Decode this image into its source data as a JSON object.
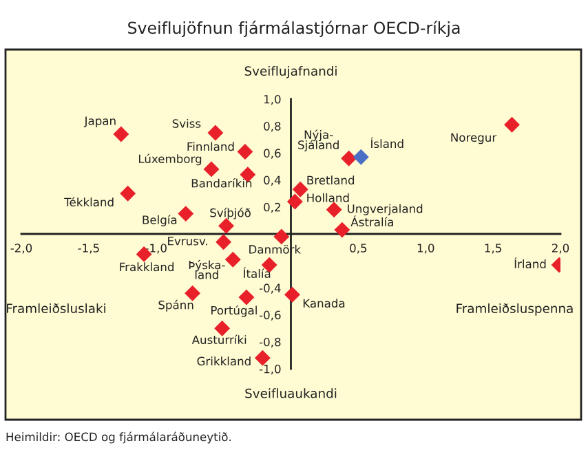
{
  "chart_data": {
    "type": "scatter",
    "title": "Sveiflujöfnun fjármálastjórnar OECD-ríkja",
    "series": [
      {
        "type": "scatter",
        "x": [
          -1.26,
          -0.56,
          -0.34,
          -0.59,
          -0.32,
          -1.21,
          -0.78,
          -0.48,
          -0.5,
          -0.07,
          -1.09,
          -0.43,
          -0.16,
          -0.73,
          -0.33,
          0.01,
          -0.51,
          -0.21,
          0.43,
          0.52,
          1.64,
          0.07,
          0.03,
          0.32,
          0.38,
          1.99
        ],
        "values": [
          0.74,
          0.75,
          0.61,
          0.48,
          0.44,
          0.3,
          0.15,
          0.06,
          -0.06,
          -0.02,
          -0.15,
          -0.19,
          -0.23,
          -0.44,
          -0.47,
          -0.45,
          -0.7,
          -0.92,
          0.56,
          0.57,
          0.81,
          0.33,
          0.24,
          0.18,
          0.03,
          -0.23
        ],
        "colors": [
          "#e8202a",
          "#e8202a",
          "#e8202a",
          "#e8202a",
          "#e8202a",
          "#e8202a",
          "#e8202a",
          "#e8202a",
          "#e8202a",
          "#e8202a",
          "#e8202a",
          "#e8202a",
          "#e8202a",
          "#e8202a",
          "#e8202a",
          "#e8202a",
          "#e8202a",
          "#e8202a",
          "#e8202a",
          "#4a6fc4",
          "#e8202a",
          "#e8202a",
          "#e8202a",
          "#e8202a",
          "#e8202a",
          "#e8202a"
        ],
        "value_labels": [
          "Japan",
          "Sviss",
          "Finnland",
          "Lúxemborg",
          "Bandaríkin",
          "Tékkland",
          "Belgía",
          "Svíþjóð",
          "Evrusv.",
          "Danmörk",
          "Frakkland",
          "Þýska-\nland",
          "Ítalía",
          "Spánn",
          "Portúgal",
          "Kanada",
          "Austurríki",
          "Grikkland",
          "Nýja-\nSjáland",
          "Ísland",
          "Noregur",
          "Bretland",
          "Holland",
          "Ungverjaland",
          "Ástralía",
          "Írland"
        ]
      }
    ],
    "xlim": [
      -2.0,
      2.0
    ],
    "xticks": [
      {
        "value": -2.0,
        "label": "-2,0"
      },
      {
        "value": -1.5,
        "label": "-1,5"
      },
      {
        "value": -1.0,
        "label": "-1,0"
      },
      {
        "value": 0,
        "label": null
      },
      {
        "value": 0.5,
        "label": "0,5"
      },
      {
        "value": 1.0,
        "label": "1,0"
      },
      {
        "value": 1.5,
        "label": "1,5"
      },
      {
        "value": 2.0,
        "label": "2,0"
      }
    ],
    "ylim": [
      -1.0,
      1.0
    ],
    "yticks": [
      {
        "value": -1.0,
        "label": "-1,0"
      },
      {
        "value": -0.8,
        "label": "-0,8"
      },
      {
        "value": -0.6,
        "label": "-0,6"
      },
      {
        "value": -0.4,
        "label": "-0,4"
      },
      {
        "value": 0,
        "label": null
      },
      {
        "value": 0.2,
        "label": "0,2"
      },
      {
        "value": 0.4,
        "label": "0,4"
      },
      {
        "value": 0.6,
        "label": "0,6"
      },
      {
        "value": 0.8,
        "label": "0,8"
      },
      {
        "value": 1.0,
        "label": "1,0"
      }
    ],
    "marker": "diamond",
    "grid": false,
    "legend": false,
    "annotations": [
      "Sveiflujafnandi",
      "Sveifluaukandi",
      "Framleiðsluslaki",
      "Framleiðsluspenna",
      "Heimildir: OECD og fjármálaráðuneytið."
    ]
  }
}
